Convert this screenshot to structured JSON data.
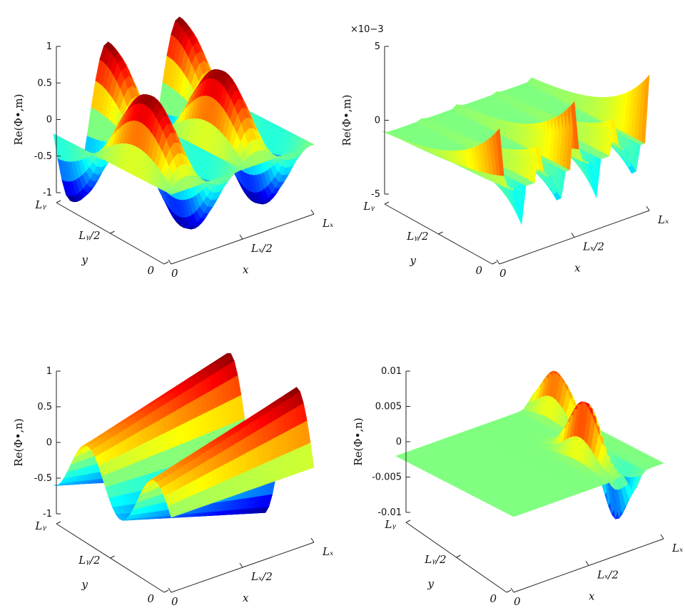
{
  "chart_data": [
    {
      "type": "surface",
      "zlabel": "Re(Φ•,m)",
      "xlabel": "x",
      "ylabel": "y",
      "x_ticks": [
        "0",
        "L_x/2",
        "L_x"
      ],
      "y_ticks": [
        "0",
        "L_y/2",
        "L_y"
      ],
      "z_ticks": [
        "1",
        "0.5",
        "0",
        "-0.5",
        "-1"
      ],
      "z_tick_values": [
        1,
        0.5,
        0,
        -0.5,
        -1
      ],
      "zlim": [
        -1,
        1
      ],
      "exponent_label": "",
      "colormap": "jet"
    },
    {
      "type": "surface",
      "zlabel": "Re(Φ•,m)",
      "xlabel": "x",
      "ylabel": "y",
      "x_ticks": [
        "0",
        "L_x/2",
        "L_x"
      ],
      "y_ticks": [
        "0",
        "L_y/2",
        "L_y"
      ],
      "z_ticks": [
        "5",
        "0",
        "-5"
      ],
      "z_tick_values": [
        5,
        0,
        -5
      ],
      "zlim": [
        -5,
        5
      ],
      "exponent_label": "×10−3",
      "colormap": "jet"
    },
    {
      "type": "surface",
      "zlabel": "Re(Φ•,n)",
      "xlabel": "x",
      "ylabel": "y",
      "x_ticks": [
        "0",
        "L_x/2",
        "L_x"
      ],
      "y_ticks": [
        "0",
        "L_y/2",
        "L_y"
      ],
      "z_ticks": [
        "1",
        "0.5",
        "0",
        "-0.5",
        "-1"
      ],
      "z_tick_values": [
        1,
        0.5,
        0,
        -0.5,
        -1
      ],
      "zlim": [
        -1,
        1
      ],
      "exponent_label": "",
      "colormap": "jet"
    },
    {
      "type": "surface",
      "zlabel": "Re(Φ•,n)",
      "xlabel": "x",
      "ylabel": "y",
      "x_ticks": [
        "0",
        "L_x/2",
        "L_x"
      ],
      "y_ticks": [
        "0",
        "L_y/2",
        "L_y"
      ],
      "z_ticks": [
        "0.01",
        "0.005",
        "0",
        "-0.005",
        "-0.01"
      ],
      "z_tick_values": [
        0.01,
        0.005,
        0,
        -0.005,
        -0.01
      ],
      "zlim": [
        -0.01,
        0.01
      ],
      "exponent_label": "",
      "colormap": "jet"
    }
  ]
}
